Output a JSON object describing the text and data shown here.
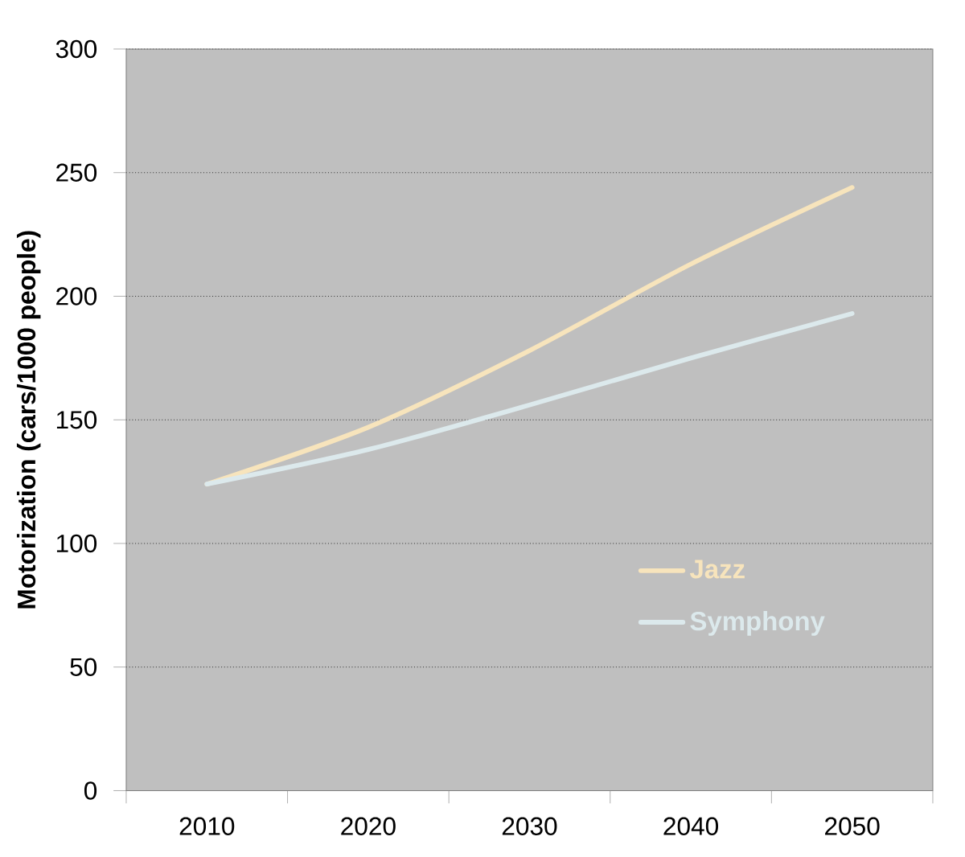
{
  "chart_data": {
    "type": "line",
    "ylabel": "Motorization (cars/1000 people)",
    "categories": [
      "2010",
      "2020",
      "2030",
      "2040",
      "2050"
    ],
    "series": [
      {
        "name": "Jazz",
        "color": "#f7e4bc",
        "values": [
          124,
          147,
          178,
          213,
          244
        ]
      },
      {
        "name": "Symphony",
        "color": "#dce9ec",
        "values": [
          124,
          138,
          156,
          175,
          193
        ]
      }
    ],
    "ylim": [
      0,
      300
    ],
    "yticks": [
      0,
      50,
      100,
      150,
      200,
      250,
      300
    ],
    "grid": "y",
    "legend": "bottom right",
    "marker": "none",
    "line_style": "solid"
  }
}
